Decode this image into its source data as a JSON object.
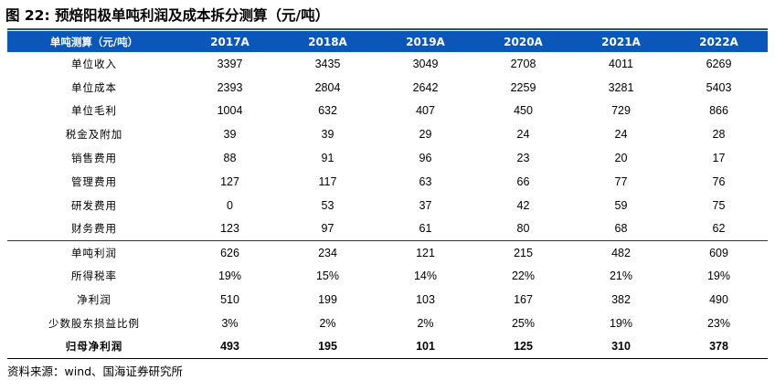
{
  "title": "图 22:  预焙阳极单吨利润及成本拆分测算（元/吨）",
  "table": {
    "header_label": "单吨测算（元/吨）",
    "years": [
      "2017A",
      "2018A",
      "2019A",
      "2020A",
      "2021A",
      "2022A"
    ],
    "rows": [
      {
        "label": "单位收入",
        "values": [
          "3397",
          "3435",
          "3049",
          "2708",
          "4011",
          "6269"
        ]
      },
      {
        "label": "单位成本",
        "values": [
          "2393",
          "2804",
          "2642",
          "2259",
          "3281",
          "5403"
        ]
      },
      {
        "label": "单位毛利",
        "values": [
          "1004",
          "632",
          "407",
          "450",
          "729",
          "866"
        ]
      },
      {
        "label": "税金及附加",
        "values": [
          "39",
          "39",
          "29",
          "24",
          "24",
          "28"
        ]
      },
      {
        "label": "销售费用",
        "values": [
          "88",
          "91",
          "96",
          "23",
          "20",
          "17"
        ]
      },
      {
        "label": "管理费用",
        "values": [
          "127",
          "117",
          "63",
          "66",
          "77",
          "76"
        ]
      },
      {
        "label": "研发费用",
        "values": [
          "0",
          "53",
          "37",
          "42",
          "59",
          "75"
        ]
      },
      {
        "label": "财务费用",
        "values": [
          "123",
          "97",
          "61",
          "80",
          "68",
          "62"
        ]
      },
      {
        "label": "单吨利润",
        "values": [
          "626",
          "234",
          "121",
          "215",
          "482",
          "609"
        ]
      },
      {
        "label": "所得税率",
        "values": [
          "19%",
          "15%",
          "14%",
          "22%",
          "21%",
          "19%"
        ]
      },
      {
        "label": "净利润",
        "values": [
          "510",
          "199",
          "103",
          "167",
          "382",
          "490"
        ]
      },
      {
        "label": "少数股东损益比例",
        "values": [
          "3%",
          "2%",
          "2%",
          "25%",
          "19%",
          "23%"
        ]
      },
      {
        "label": "归母净利润",
        "values": [
          "493",
          "195",
          "101",
          "125",
          "310",
          "378"
        ]
      }
    ]
  },
  "source": "资料来源：wind、国海证券研究所",
  "colors": {
    "header_bg": "#0b57b9",
    "header_text": "#ffffff"
  }
}
